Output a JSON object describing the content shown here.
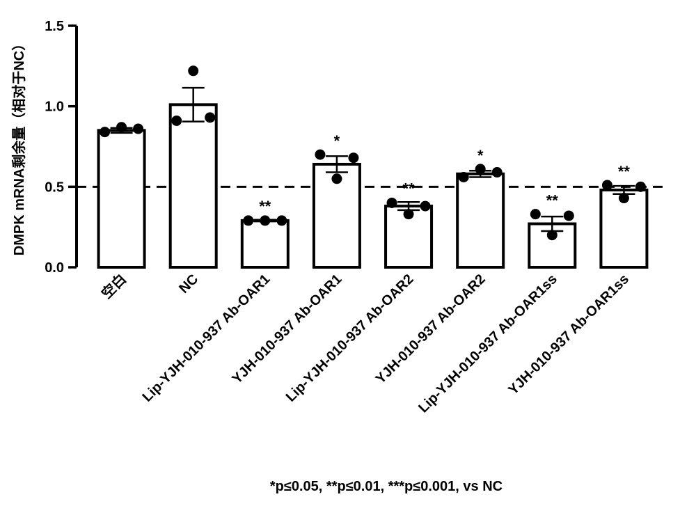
{
  "chart_data": {
    "type": "bar",
    "title": "",
    "xlabel": "",
    "ylabel": "DMPK mRNA剩余量（相对于NC）",
    "ylim": [
      0,
      1.5
    ],
    "yticks": [
      "0.0",
      "0.5",
      "1.0",
      "1.5"
    ],
    "ytick_values": [
      0,
      0.5,
      1.0,
      1.5
    ],
    "reference_line": 0.5,
    "categories": [
      "空白",
      "NC",
      "Lip-YJH-010-937 Ab-OAR1",
      "YJH-010-937 Ab-OAR1",
      "Lip-YJH-010-937 Ab-OAR2",
      "YJH-010-937 Ab-OAR2",
      "Lip-YJH-010-937 Ab-OAR1ss",
      "YJH-010-937 Ab-OAR1ss"
    ],
    "values": [
      0.85,
      1.01,
      0.29,
      0.64,
      0.38,
      0.58,
      0.27,
      0.48
    ],
    "sem": [
      0.015,
      0.105,
      0.005,
      0.05,
      0.025,
      0.02,
      0.045,
      0.025
    ],
    "points": [
      [
        0.84,
        0.87,
        0.86
      ],
      [
        0.91,
        1.22,
        0.93
      ],
      [
        0.29,
        0.29,
        0.29
      ],
      [
        0.7,
        0.55,
        0.68
      ],
      [
        0.4,
        0.33,
        0.38
      ],
      [
        0.56,
        0.61,
        0.59
      ],
      [
        0.33,
        0.2,
        0.32
      ],
      [
        0.51,
        0.43,
        0.5
      ]
    ],
    "significance": [
      "",
      "",
      "**",
      "*",
      "**",
      "*",
      "**",
      "**"
    ],
    "footnote": "*p≤0.05, **p≤0.01, ***p≤0.001, vs NC"
  }
}
